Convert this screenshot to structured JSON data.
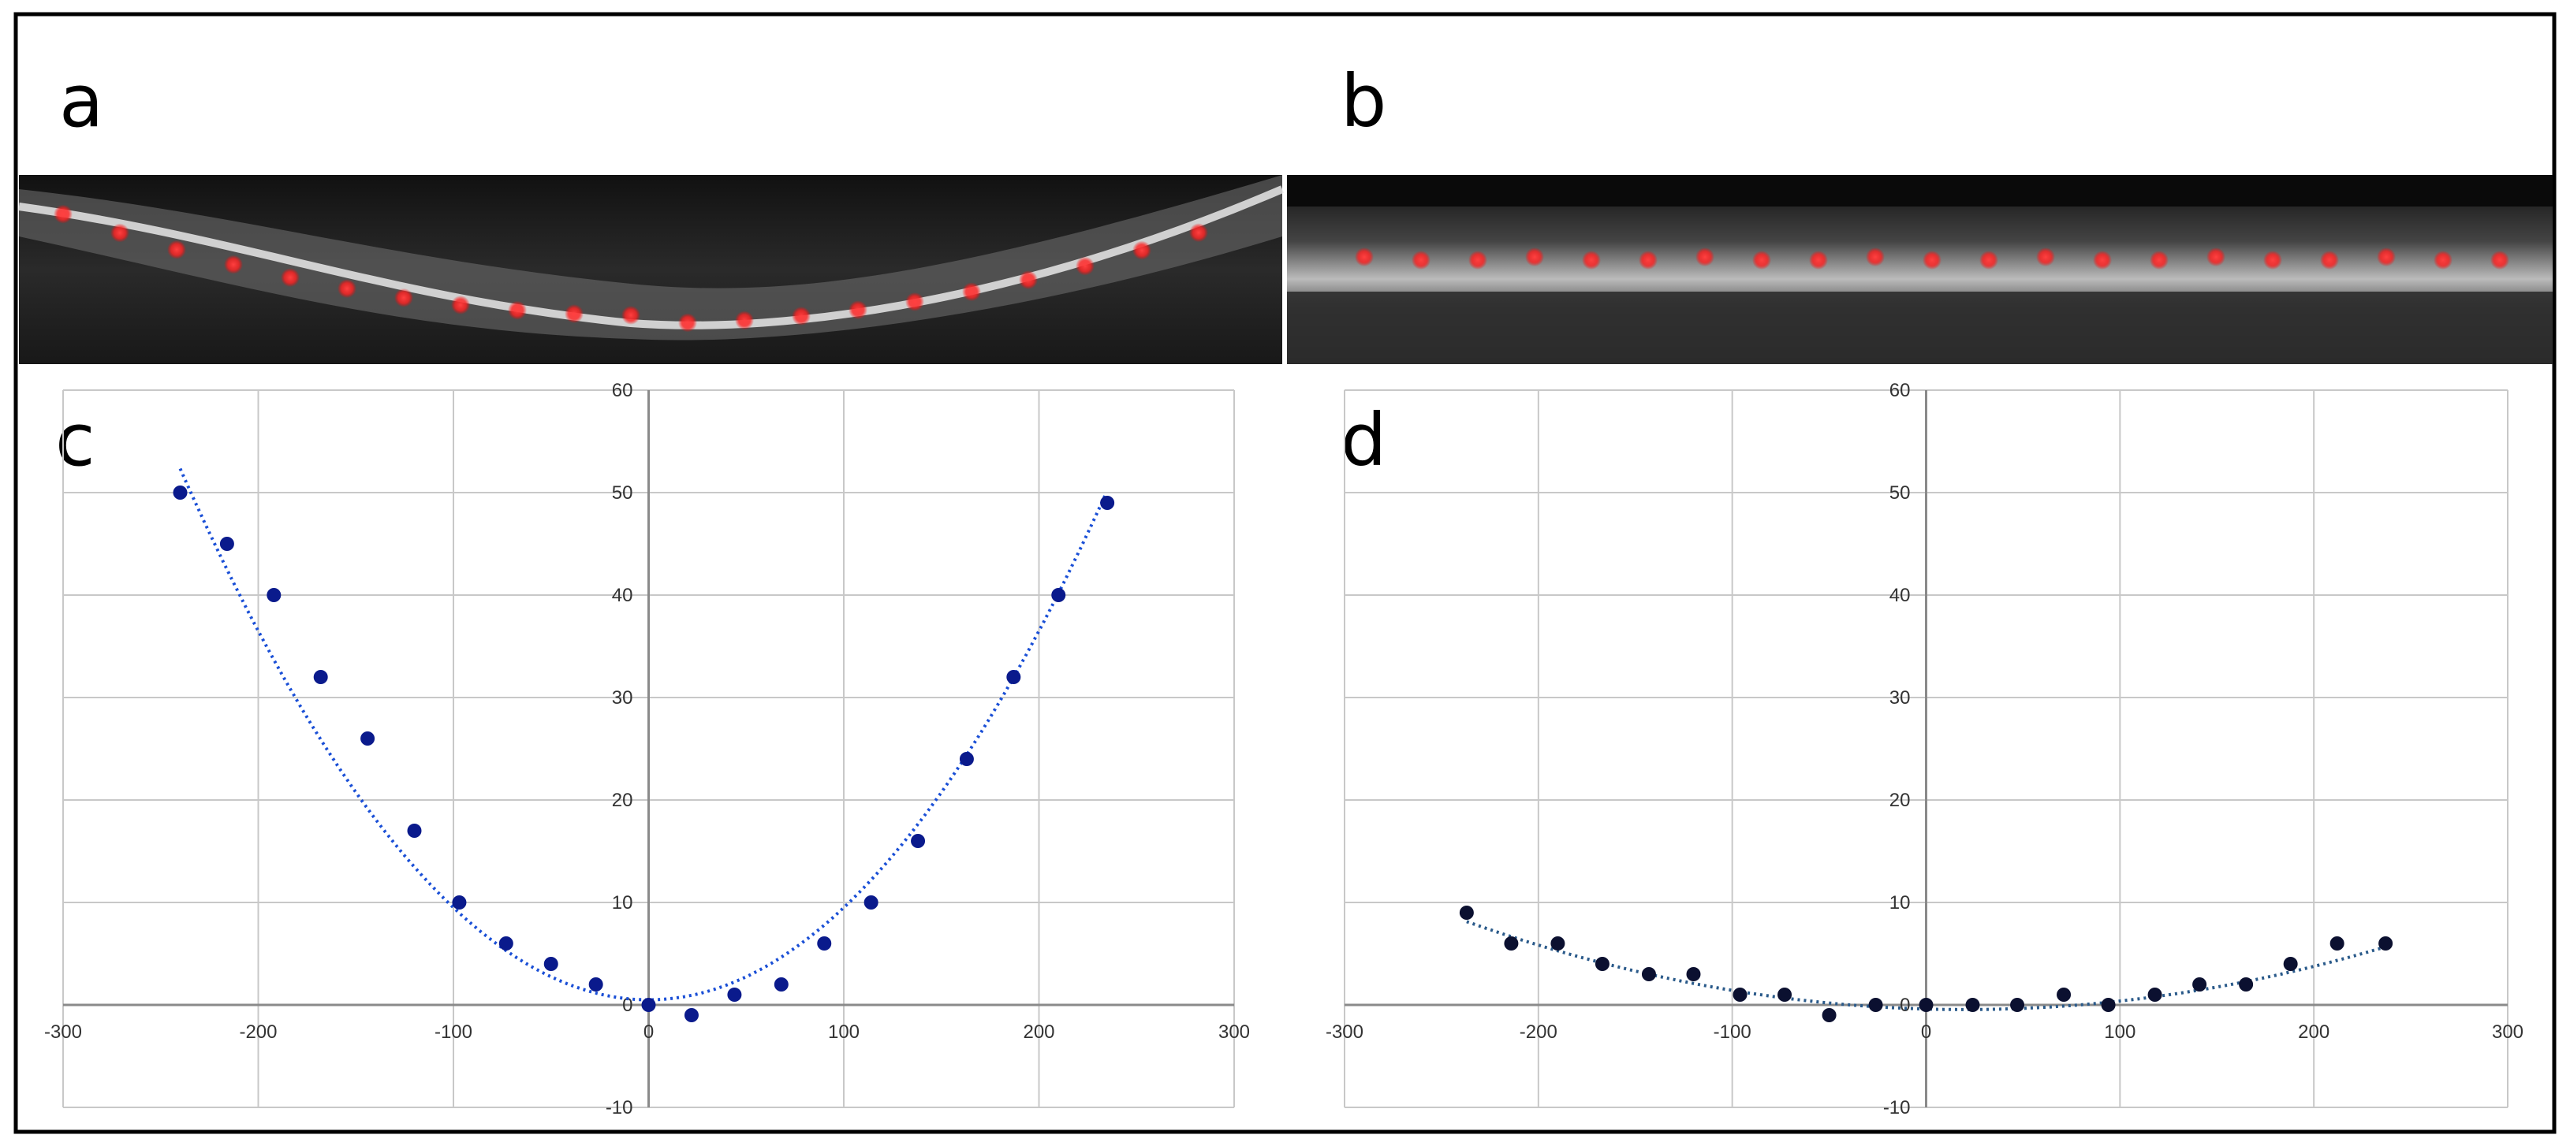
{
  "panels": {
    "a": "a",
    "b": "b",
    "c": "c",
    "d": "d"
  },
  "colors": {
    "grid": "#c8c8c8",
    "axis": "#8a8a8a",
    "point_c": "#0a1a8c",
    "trend_c": "#1a4fd6",
    "point_d": "#0b1030",
    "trend_d": "#2a5a8a",
    "oct_marker": "#ff3030",
    "frame": "#000000"
  },
  "oct_images": {
    "a": {
      "description_marker_count": 21,
      "shape": "curved"
    },
    "b": {
      "description_marker_count": 21,
      "shape": "flat"
    }
  },
  "chart_data": [
    {
      "id": "c",
      "type": "scatter",
      "title": "",
      "xlabel": "",
      "ylabel": "",
      "xlim": [
        -300,
        300
      ],
      "ylim": [
        -10,
        60
      ],
      "x_ticks": [
        "-300",
        "-200",
        "-100",
        "0",
        "100",
        "200",
        "300"
      ],
      "y_ticks": [
        "-10",
        "0",
        "10",
        "20",
        "30",
        "40",
        "50",
        "60"
      ],
      "grid": true,
      "trendline": {
        "type": "polynomial",
        "coeffs": [
          0.0009,
          0.0,
          0.5
        ],
        "x_range": [
          -240,
          235
        ]
      },
      "points": [
        {
          "x": -240,
          "y": 50
        },
        {
          "x": -216,
          "y": 45
        },
        {
          "x": -192,
          "y": 40
        },
        {
          "x": -168,
          "y": 32
        },
        {
          "x": -144,
          "y": 26
        },
        {
          "x": -120,
          "y": 17
        },
        {
          "x": -97,
          "y": 10
        },
        {
          "x": -73,
          "y": 6
        },
        {
          "x": -50,
          "y": 4
        },
        {
          "x": -27,
          "y": 2
        },
        {
          "x": 0,
          "y": 0
        },
        {
          "x": 22,
          "y": -1
        },
        {
          "x": 44,
          "y": 1
        },
        {
          "x": 68,
          "y": 2
        },
        {
          "x": 90,
          "y": 6
        },
        {
          "x": 114,
          "y": 10
        },
        {
          "x": 138,
          "y": 16
        },
        {
          "x": 163,
          "y": 24
        },
        {
          "x": 187,
          "y": 32
        },
        {
          "x": 210,
          "y": 40
        },
        {
          "x": 235,
          "y": 49
        }
      ]
    },
    {
      "id": "d",
      "type": "scatter",
      "title": "",
      "xlabel": "",
      "ylabel": "",
      "xlim": [
        -300,
        300
      ],
      "ylim": [
        -10,
        60
      ],
      "x_ticks": [
        "-300",
        "-200",
        "-100",
        "0",
        "100",
        "200",
        "300"
      ],
      "y_ticks": [
        "-10",
        "0",
        "10",
        "20",
        "30",
        "40",
        "50",
        "60"
      ],
      "grid": true,
      "trendline": {
        "type": "polynomial",
        "coeffs": [
          0.00013,
          -0.0052,
          -0.4
        ],
        "x_range": [
          -237,
          237
        ]
      },
      "points": [
        {
          "x": -237,
          "y": 9
        },
        {
          "x": -214,
          "y": 6
        },
        {
          "x": -190,
          "y": 6
        },
        {
          "x": -167,
          "y": 4
        },
        {
          "x": -143,
          "y": 3
        },
        {
          "x": -120,
          "y": 3
        },
        {
          "x": -96,
          "y": 1
        },
        {
          "x": -73,
          "y": 1
        },
        {
          "x": -50,
          "y": -1
        },
        {
          "x": -26,
          "y": 0
        },
        {
          "x": 0,
          "y": 0
        },
        {
          "x": 24,
          "y": 0
        },
        {
          "x": 47,
          "y": 0
        },
        {
          "x": 71,
          "y": 1
        },
        {
          "x": 94,
          "y": 0
        },
        {
          "x": 118,
          "y": 1
        },
        {
          "x": 141,
          "y": 2
        },
        {
          "x": 165,
          "y": 2
        },
        {
          "x": 188,
          "y": 4
        },
        {
          "x": 212,
          "y": 6
        },
        {
          "x": 237,
          "y": 6
        }
      ]
    }
  ]
}
